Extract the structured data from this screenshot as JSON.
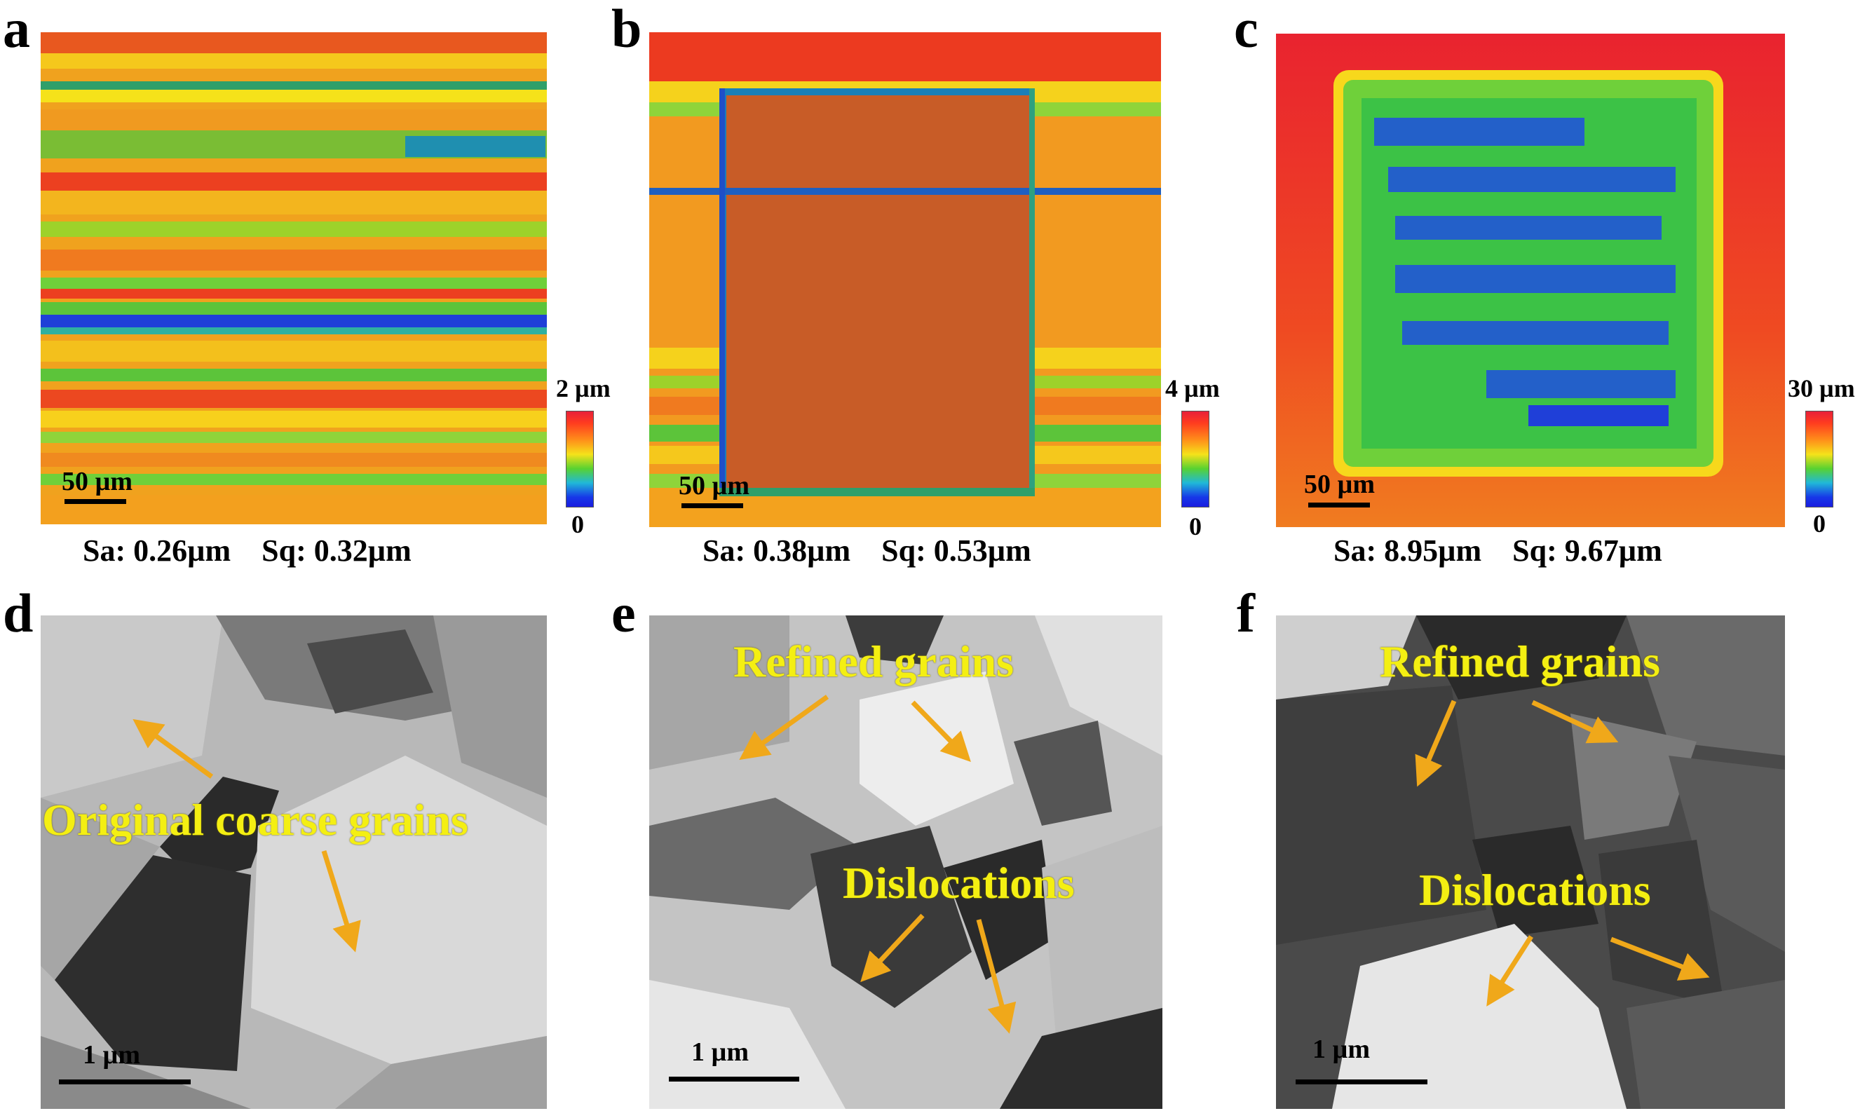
{
  "panels": [
    {
      "letter": "a",
      "scale": "50 µm",
      "cbar_max": "2 µm",
      "cbar_min": "0",
      "sa": "Sa: 0.26µm",
      "sq": "Sq: 0.32µm"
    },
    {
      "letter": "b",
      "scale": "50 µm",
      "cbar_max": "4 µm",
      "cbar_min": "0",
      "sa": "Sa: 0.38µm",
      "sq": "Sq: 0.53µm"
    },
    {
      "letter": "c",
      "scale": "50 µm",
      "cbar_max": "30 µm",
      "cbar_min": "0",
      "sa": "Sa: 8.95µm",
      "sq": "Sq: 9.67µm"
    },
    {
      "letter": "d",
      "scale": "1 µm",
      "labels": [
        "Original coarse grains"
      ]
    },
    {
      "letter": "e",
      "scale": "1 µm",
      "labels": [
        "Refined grains",
        "Dislocations"
      ]
    },
    {
      "letter": "f",
      "scale": "1 µm",
      "labels": [
        "Refined grains",
        "Dislocations"
      ]
    }
  ],
  "colors": {
    "annotation_text": "#f4ef12",
    "arrow": "#f0a81a",
    "colormap": [
      "#1a1ee0",
      "#20b8d8",
      "#58d231",
      "#f5e21a",
      "#ff8f1a",
      "#e8203a"
    ]
  }
}
